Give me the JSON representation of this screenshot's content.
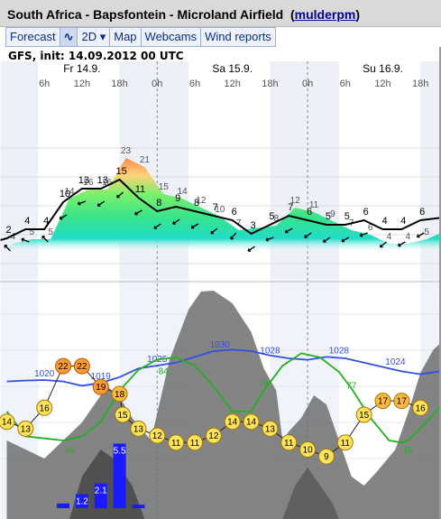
{
  "window": {
    "title": "South Africa - Bapsfontein - Microland Airfield",
    "user_link": "mulderpm"
  },
  "toolbar": {
    "tabs": [
      {
        "label": "Forecast"
      },
      {
        "label": "∿",
        "icon": "wave-icon"
      },
      {
        "label": "2D ▾"
      },
      {
        "label": "Map"
      },
      {
        "label": "Webcams"
      },
      {
        "label": "Wind reports"
      }
    ]
  },
  "model_info": "GFS, init: 14.09.2012 00 UTC",
  "chart_data": {
    "type": "meteogram",
    "days": [
      {
        "label": "Fr 14.9.",
        "hour": 12
      },
      {
        "label": "Sa 15.9.",
        "hour": 36
      },
      {
        "label": "Su 16.9.",
        "hour": 60
      }
    ],
    "hour_ticks": [
      {
        "h": 6,
        "label": "6h"
      },
      {
        "h": 12,
        "label": "12h"
      },
      {
        "h": 18,
        "label": "18h"
      },
      {
        "h": 24,
        "label": "0h"
      },
      {
        "h": 30,
        "label": "6h"
      },
      {
        "h": 36,
        "label": "12h"
      },
      {
        "h": 42,
        "label": "18h"
      },
      {
        "h": 48,
        "label": "0h"
      },
      {
        "h": 54,
        "label": "6h"
      },
      {
        "h": 60,
        "label": "12h"
      },
      {
        "h": 66,
        "label": "18h"
      }
    ],
    "colors": {
      "gust_fill_top": "#ff9c5a",
      "gust_fill_mid": "#5ce65c",
      "gust_fill_low": "#21e0c8",
      "wind_line": "#000000",
      "temperature_fill": "#ffe37a",
      "temperature_warm_fill": "#ffa640",
      "pressure_line": "#3050e0",
      "humidity_line": "#20b020",
      "precip_bars": "#1a1aff",
      "cloud_fill": "#6e6e6e"
    },
    "gust_labels": [
      {
        "h": 1,
        "v": 4
      },
      {
        "h": 4,
        "v": 5
      },
      {
        "h": 7,
        "v": 5
      },
      {
        "h": 10,
        "v": 14
      },
      {
        "h": 13,
        "v": 16
      },
      {
        "h": 16,
        "v": 16
      },
      {
        "h": 19,
        "v": 23
      },
      {
        "h": 22,
        "v": 21
      },
      {
        "h": 25,
        "v": 15
      },
      {
        "h": 28,
        "v": 14
      },
      {
        "h": 31,
        "v": 12
      },
      {
        "h": 34,
        "v": 10
      },
      {
        "h": 37,
        "v": 7
      },
      {
        "h": 43,
        "v": 8
      },
      {
        "h": 46,
        "v": 12
      },
      {
        "h": 49,
        "v": 11
      },
      {
        "h": 52,
        "v": 9
      },
      {
        "h": 55,
        "v": 7
      },
      {
        "h": 58,
        "v": 6
      },
      {
        "h": 61,
        "v": 4
      },
      {
        "h": 64,
        "v": 4
      },
      {
        "h": 67,
        "v": 5
      }
    ],
    "wind_labels": [
      {
        "h": 0,
        "v": 2
      },
      {
        "h": 3,
        "v": 4
      },
      {
        "h": 6,
        "v": 4
      },
      {
        "h": 9,
        "v": 10
      },
      {
        "h": 12,
        "v": 13
      },
      {
        "h": 15,
        "v": 13
      },
      {
        "h": 18,
        "v": 15
      },
      {
        "h": 21,
        "v": 11
      },
      {
        "h": 24,
        "v": 8
      },
      {
        "h": 27,
        "v": 9
      },
      {
        "h": 30,
        "v": 8
      },
      {
        "h": 33,
        "v": 7
      },
      {
        "h": 36,
        "v": 6
      },
      {
        "h": 39,
        "v": 3
      },
      {
        "h": 42,
        "v": 5
      },
      {
        "h": 45,
        "v": 7
      },
      {
        "h": 48,
        "v": 6
      },
      {
        "h": 51,
        "v": 5
      },
      {
        "h": 54,
        "v": 5
      },
      {
        "h": 57,
        "v": 6
      },
      {
        "h": 60,
        "v": 4
      },
      {
        "h": 63,
        "v": 4
      },
      {
        "h": 66,
        "v": 6
      }
    ],
    "temperature": [
      {
        "h": 0,
        "v": 14
      },
      {
        "h": 3,
        "v": 13
      },
      {
        "h": 6,
        "v": 16
      },
      {
        "h": 9,
        "v": 22
      },
      {
        "h": 12,
        "v": 22
      },
      {
        "h": 15,
        "v": 19
      },
      {
        "h": 18,
        "v": 18
      },
      {
        "h": 18.5,
        "v": 15
      },
      {
        "h": 21,
        "v": 13
      },
      {
        "h": 24,
        "v": 12
      },
      {
        "h": 27,
        "v": 11
      },
      {
        "h": 30,
        "v": 11
      },
      {
        "h": 33,
        "v": 12
      },
      {
        "h": 36,
        "v": 14
      },
      {
        "h": 39,
        "v": 14
      },
      {
        "h": 42,
        "v": 13
      },
      {
        "h": 45,
        "v": 11
      },
      {
        "h": 48,
        "v": 10
      },
      {
        "h": 51,
        "v": 9
      },
      {
        "h": 54,
        "v": 11
      },
      {
        "h": 57,
        "v": 15
      },
      {
        "h": 60,
        "v": 17
      },
      {
        "h": 63,
        "v": 17
      },
      {
        "h": 66,
        "v": 16
      }
    ],
    "pressure_labels": [
      {
        "h": 6,
        "v": 1020
      },
      {
        "h": 15,
        "v": 1019
      },
      {
        "h": 24,
        "v": 1025
      },
      {
        "h": 34,
        "v": 1030
      },
      {
        "h": 42,
        "v": 1028
      },
      {
        "h": 53,
        "v": 1028
      },
      {
        "h": 62,
        "v": 1024
      }
    ],
    "humidity_labels": [
      {
        "h": 10,
        "v": 46
      },
      {
        "h": 25,
        "v": 84
      },
      {
        "h": 41,
        "v": 78
      },
      {
        "h": 55,
        "v": 77
      },
      {
        "h": 64,
        "v": 46
      }
    ],
    "precipitation": [
      {
        "h": 9,
        "v": 0.4
      },
      {
        "h": 12,
        "v": 1.2
      },
      {
        "h": 15,
        "v": 2.1
      },
      {
        "h": 18,
        "v": 5.5
      },
      {
        "h": 21,
        "v": 0.3
      }
    ]
  }
}
